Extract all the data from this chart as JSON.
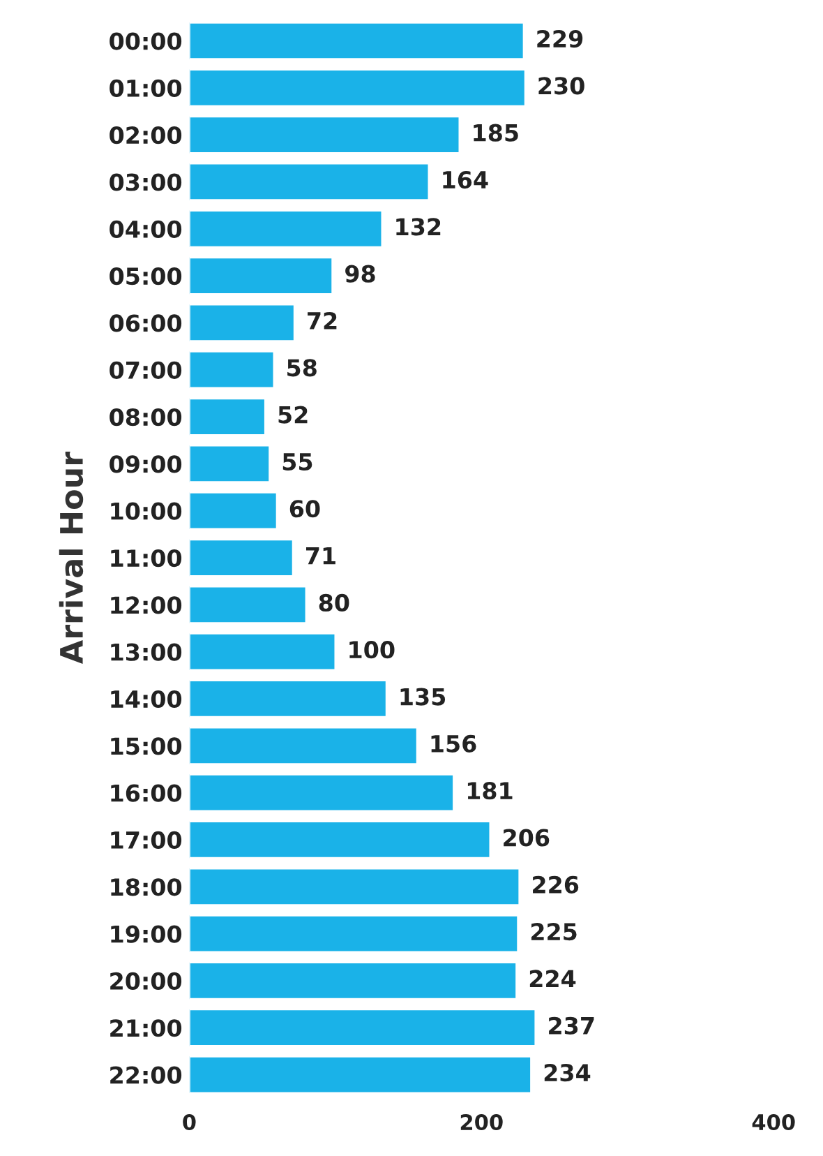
{
  "chart_data": {
    "type": "bar",
    "orientation": "horizontal",
    "ylabel": "Arrival Hour",
    "categories": [
      "00:00",
      "01:00",
      "02:00",
      "03:00",
      "04:00",
      "05:00",
      "06:00",
      "07:00",
      "08:00",
      "09:00",
      "10:00",
      "11:00",
      "12:00",
      "13:00",
      "14:00",
      "15:00",
      "16:00",
      "17:00",
      "18:00",
      "19:00",
      "20:00",
      "21:00",
      "22:00"
    ],
    "values": [
      229,
      230,
      185,
      164,
      132,
      98,
      72,
      58,
      52,
      55,
      60,
      71,
      80,
      100,
      135,
      156,
      181,
      206,
      226,
      225,
      224,
      237,
      234
    ],
    "color": "#1ab2e8",
    "xlim": [
      0,
      400
    ],
    "xticks": [
      0,
      200,
      400
    ],
    "data_labels": true,
    "grid": false
  }
}
